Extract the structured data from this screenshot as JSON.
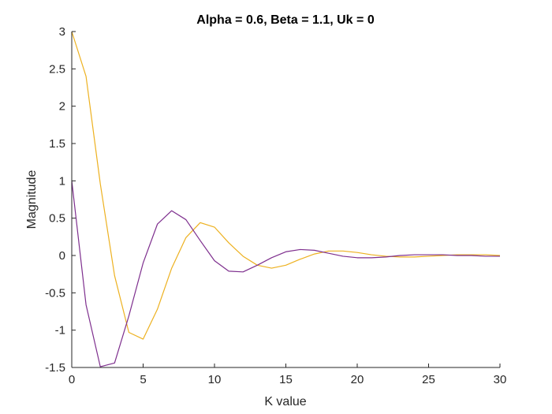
{
  "chart_data": {
    "type": "line",
    "title": "Alpha = 0.6, Beta = 1.1, Uk = 0",
    "xlabel": "K value",
    "ylabel": "Magnitude",
    "xlim": [
      0,
      30
    ],
    "ylim": [
      -1.5,
      3
    ],
    "xticks": [
      0,
      5,
      10,
      15,
      20,
      25,
      30
    ],
    "xtick_labels": [
      "0",
      "5",
      "10",
      "15",
      "20",
      "25",
      "30"
    ],
    "yticks": [
      -1.5,
      -1,
      -0.5,
      0,
      0.5,
      1,
      1.5,
      2,
      2.5,
      3
    ],
    "ytick_labels": [
      "-1.5",
      "-1",
      "-0.5",
      "0",
      "0.5",
      "1",
      "1.5",
      "2",
      "2.5",
      "3"
    ],
    "grid": false,
    "legend": "none",
    "x": [
      0,
      1,
      2,
      3,
      4,
      5,
      6,
      7,
      8,
      9,
      10,
      11,
      12,
      13,
      14,
      15,
      16,
      17,
      18,
      19,
      20,
      21,
      22,
      23,
      24,
      25,
      26,
      27,
      28,
      29,
      30
    ],
    "series": [
      {
        "color": "#EDB120",
        "values": [
          3,
          2.4,
          0.96,
          -0.27,
          -1.03,
          -1.12,
          -0.72,
          -0.17,
          0.24,
          0.44,
          0.38,
          0.17,
          -0.01,
          -0.13,
          -0.17,
          -0.13,
          -0.05,
          0.02,
          0.06,
          0.06,
          0.04,
          0.01,
          -0.01,
          -0.02,
          -0.02,
          -0.01,
          0.0,
          0.01,
          0.01,
          0.01,
          0.0
        ]
      },
      {
        "color": "#7E2F8E",
        "values": [
          1,
          -0.66,
          -1.49,
          -1.44,
          -0.81,
          -0.1,
          0.42,
          0.6,
          0.48,
          0.2,
          -0.07,
          -0.21,
          -0.22,
          -0.13,
          -0.03,
          0.05,
          0.08,
          0.07,
          0.03,
          -0.01,
          -0.03,
          -0.03,
          -0.02,
          0.0,
          0.01,
          0.01,
          0.01,
          0.0,
          0.0,
          -0.01,
          -0.01
        ]
      }
    ]
  }
}
